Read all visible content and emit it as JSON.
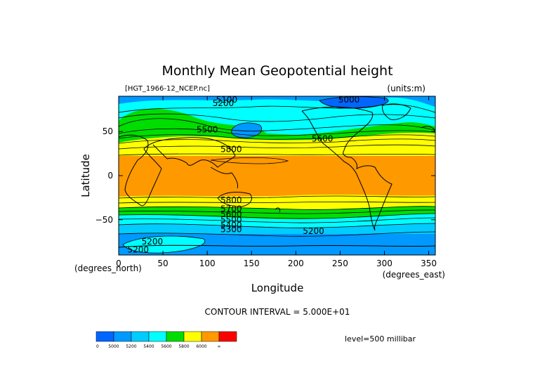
{
  "chart_data": {
    "type": "heatmap",
    "title": "Monthly Mean Geopotential height",
    "file_label": "[HGT_1966-12_NCEP.nc]",
    "units_label": "(units:m)",
    "xlabel": "Longitude",
    "ylabel": "Latitude",
    "x_unit_label": "(degrees_east)",
    "y_unit_label": "(degrees_north)",
    "xlim": [
      0,
      357.5
    ],
    "ylim": [
      -90,
      90
    ],
    "x_ticks": [
      0,
      50,
      100,
      150,
      200,
      250,
      300,
      350
    ],
    "y_ticks": [
      -50,
      0,
      50
    ],
    "contour_interval_label": "CONTOUR INTERVAL = 5.000E+01",
    "level_label": "level=500 millibar",
    "contour_labels": [
      {
        "text": "5100",
        "lon": 122,
        "lat": 86
      },
      {
        "text": "5000",
        "lon": 260,
        "lat": 86
      },
      {
        "text": "5200",
        "lon": 118,
        "lat": 82
      },
      {
        "text": "5500",
        "lon": 100,
        "lat": 52
      },
      {
        "text": "5600",
        "lon": 230,
        "lat": 42
      },
      {
        "text": "5800",
        "lon": 127,
        "lat": 30
      },
      {
        "text": "5800",
        "lon": 127,
        "lat": -28
      },
      {
        "text": "5700",
        "lon": 127,
        "lat": -38
      },
      {
        "text": "5600",
        "lon": 127,
        "lat": -44
      },
      {
        "text": "5500",
        "lon": 127,
        "lat": -50
      },
      {
        "text": "5400",
        "lon": 127,
        "lat": -56
      },
      {
        "text": "5300",
        "lon": 127,
        "lat": -61
      },
      {
        "text": "5200",
        "lon": 220,
        "lat": -63
      },
      {
        "text": "5200",
        "lon": 38,
        "lat": -75
      },
      {
        "text": "5200",
        "lon": 22,
        "lat": -84
      }
    ],
    "colorbar": {
      "colors": [
        "#0066ff",
        "#0099ff",
        "#00ccff",
        "#00ffff",
        "#00dd00",
        "#ffff00",
        "#ff9900",
        "#ff0000"
      ],
      "labels": [
        "0",
        "5000",
        "5200",
        "5400",
        "5600",
        "5800",
        "6000",
        "∞"
      ]
    }
  }
}
